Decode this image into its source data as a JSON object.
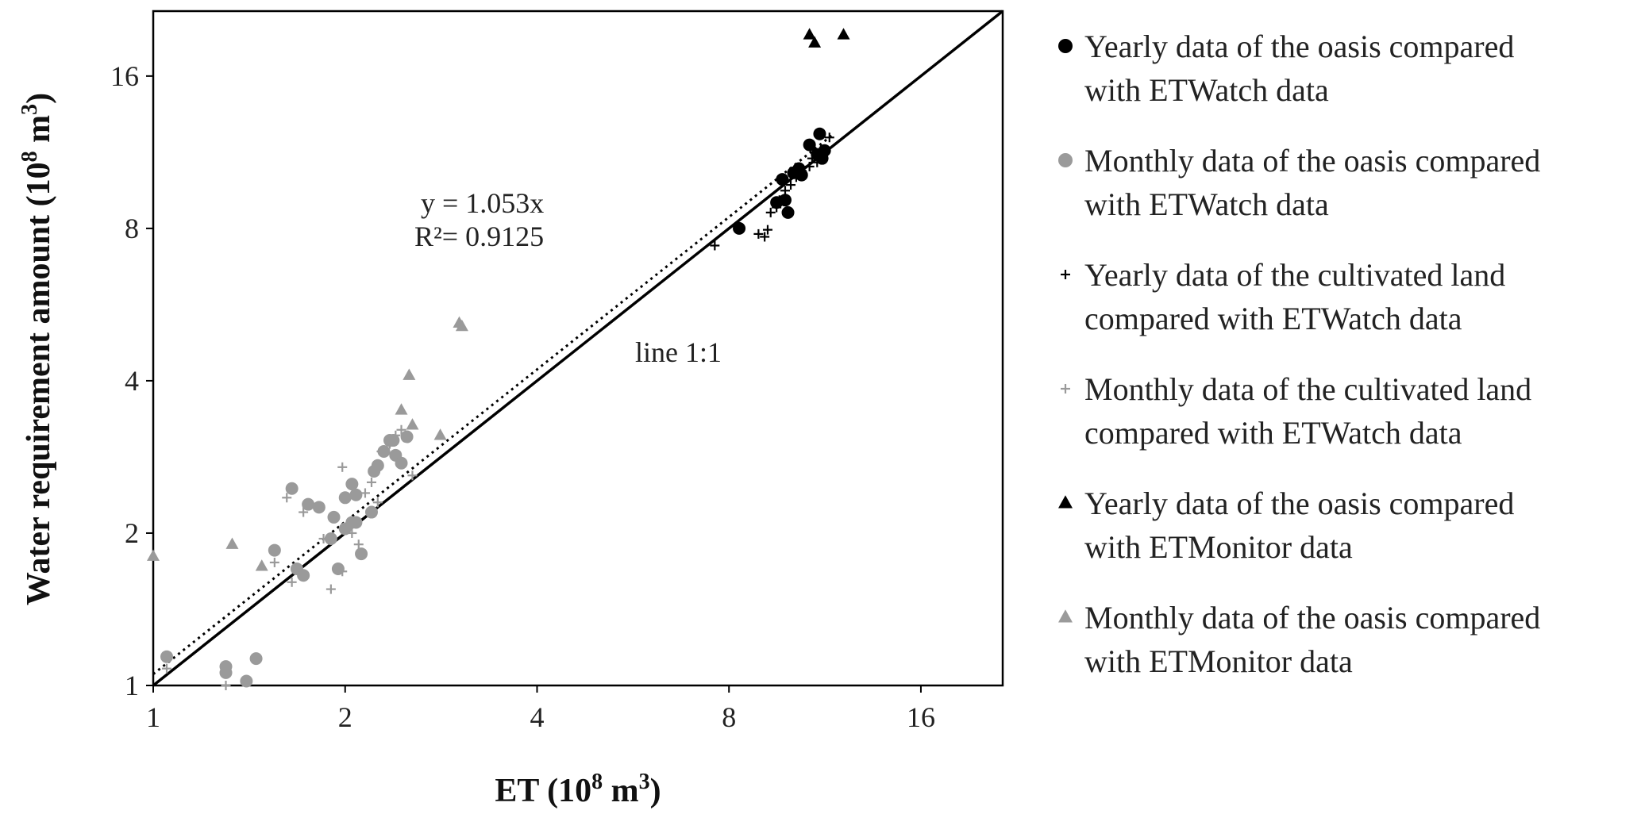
{
  "chart_data": {
    "type": "scatter",
    "x_scale": "log2",
    "y_scale": "log2",
    "xlim": [
      1,
      21.5
    ],
    "ylim": [
      1,
      21.5
    ],
    "x_ticks": [
      1,
      2,
      4,
      8,
      16
    ],
    "y_ticks": [
      1,
      2,
      4,
      8,
      16
    ],
    "tick_labels": [
      "1",
      "2",
      "4",
      "8",
      "16"
    ],
    "xlabel_main": "ET (10",
    "xlabel_sup": "8",
    "xlabel_mid": " m",
    "xlabel_sup2": "3",
    "xlabel_end": ")",
    "ylabel_main": "Water requirement amount (10",
    "ylabel_sup": "8",
    "ylabel_mid": " m",
    "ylabel_sup2": "3",
    "ylabel_end": ")",
    "grid": false,
    "legend_position": "right",
    "fit_line": {
      "slope": 1.053,
      "label_eq": "y = 1.053x",
      "label_r2": "R²= 0.9125",
      "style": "dotted"
    },
    "identity_line": {
      "label": "line 1:1",
      "style": "solid"
    },
    "colors": {
      "black": "#000000",
      "gray": "#9a9a9a"
    },
    "series": [
      {
        "name": "Yearly data of the oasis compared with ETWatch data",
        "legend_lines": [
          "Yearly data of the oasis compared",
          "with ETWatch data"
        ],
        "marker": "circle",
        "color": "#000000",
        "points": [
          [
            8.3,
            8.0
          ],
          [
            9.5,
            9.0
          ],
          [
            9.8,
            9.1
          ],
          [
            9.9,
            8.6
          ],
          [
            9.7,
            10.0
          ],
          [
            10.1,
            10.3
          ],
          [
            10.3,
            10.5
          ],
          [
            10.4,
            10.2
          ],
          [
            10.7,
            11.7
          ],
          [
            11.0,
            11.2
          ],
          [
            11.2,
            11.0
          ],
          [
            11.1,
            12.3
          ],
          [
            11.3,
            11.4
          ]
        ]
      },
      {
        "name": "Monthly data of the oasis compared with ETWatch data",
        "legend_lines": [
          "Monthly data of the oasis compared",
          "with ETWatch data"
        ],
        "marker": "circle",
        "color": "#9a9a9a",
        "points": [
          [
            1.05,
            1.14
          ],
          [
            1.3,
            1.09
          ],
          [
            1.3,
            1.06
          ],
          [
            1.4,
            1.02
          ],
          [
            1.45,
            1.13
          ],
          [
            1.55,
            1.85
          ],
          [
            1.65,
            2.45
          ],
          [
            1.68,
            1.7
          ],
          [
            1.72,
            1.65
          ],
          [
            1.75,
            2.28
          ],
          [
            1.9,
            1.95
          ],
          [
            1.95,
            1.7
          ],
          [
            2.0,
            2.04
          ],
          [
            2.05,
            2.1
          ],
          [
            1.92,
            2.15
          ],
          [
            2.0,
            2.35
          ],
          [
            2.05,
            2.5
          ],
          [
            2.08,
            2.38
          ],
          [
            2.12,
            1.82
          ],
          [
            2.2,
            2.2
          ],
          [
            2.22,
            2.65
          ],
          [
            2.25,
            2.72
          ],
          [
            2.3,
            2.9
          ],
          [
            2.35,
            3.05
          ],
          [
            2.4,
            2.85
          ],
          [
            2.45,
            2.75
          ],
          [
            2.5,
            3.1
          ],
          [
            2.38,
            3.05
          ],
          [
            2.08,
            2.1
          ],
          [
            1.82,
            2.25
          ]
        ]
      },
      {
        "name": "Yearly data of the cultivated land compared with ETWatch data",
        "legend_lines": [
          "Yearly data of the cultivated land",
          "compared with ETWatch data"
        ],
        "marker": "plus",
        "color": "#000000",
        "points": [
          [
            7.6,
            7.4
          ],
          [
            8.9,
            7.8
          ],
          [
            9.1,
            7.7
          ],
          [
            9.2,
            7.95
          ],
          [
            9.3,
            8.6
          ],
          [
            9.5,
            8.8
          ],
          [
            9.6,
            9.1
          ],
          [
            9.8,
            9.5
          ],
          [
            10.0,
            9.75
          ],
          [
            10.2,
            10.1
          ],
          [
            10.4,
            10.4
          ],
          [
            10.7,
            10.6
          ],
          [
            11.0,
            10.8
          ],
          [
            11.5,
            12.1
          ],
          [
            10.8,
            11.0
          ],
          [
            9.7,
            9.9
          ]
        ]
      },
      {
        "name": "Monthly data of the cultivated land compared with ETWatch data",
        "legend_lines": [
          "Monthly data of the cultivated land",
          "compared with ETWatch data"
        ],
        "marker": "plus",
        "color": "#9a9a9a",
        "points": [
          [
            1.05,
            1.08
          ],
          [
            1.3,
            1.0
          ],
          [
            1.55,
            1.75
          ],
          [
            1.62,
            2.35
          ],
          [
            1.65,
            1.6
          ],
          [
            1.72,
            2.2
          ],
          [
            1.85,
            1.95
          ],
          [
            1.9,
            1.55
          ],
          [
            1.98,
            1.68
          ],
          [
            2.05,
            2.0
          ],
          [
            2.1,
            1.9
          ],
          [
            2.15,
            2.4
          ],
          [
            2.2,
            2.52
          ],
          [
            2.28,
            2.9
          ],
          [
            2.35,
            3.0
          ],
          [
            2.45,
            3.2
          ],
          [
            2.55,
            2.6
          ],
          [
            2.25,
            2.3
          ],
          [
            1.98,
            2.7
          ],
          [
            2.4,
            3.12
          ]
        ]
      },
      {
        "name": "Yearly data of the oasis compared with ETMonitor data",
        "legend_lines": [
          "Yearly data of the oasis compared",
          "with ETMonitor data"
        ],
        "marker": "triangle",
        "color": "#000000",
        "points": [
          [
            10.7,
            19.3
          ],
          [
            10.9,
            18.6
          ],
          [
            12.1,
            19.3
          ]
        ]
      },
      {
        "name": "Monthly data of the oasis compared with ETMonitor data",
        "legend_lines": [
          "Monthly data of the oasis compared",
          "with ETMonitor data"
        ],
        "marker": "triangle",
        "color": "#9a9a9a",
        "points": [
          [
            1.0,
            1.8
          ],
          [
            1.33,
            1.9
          ],
          [
            1.48,
            1.72
          ],
          [
            2.45,
            3.5
          ],
          [
            2.52,
            4.1
          ],
          [
            2.55,
            3.27
          ],
          [
            2.82,
            3.12
          ],
          [
            3.02,
            5.2
          ],
          [
            3.05,
            5.12
          ]
        ]
      }
    ]
  }
}
